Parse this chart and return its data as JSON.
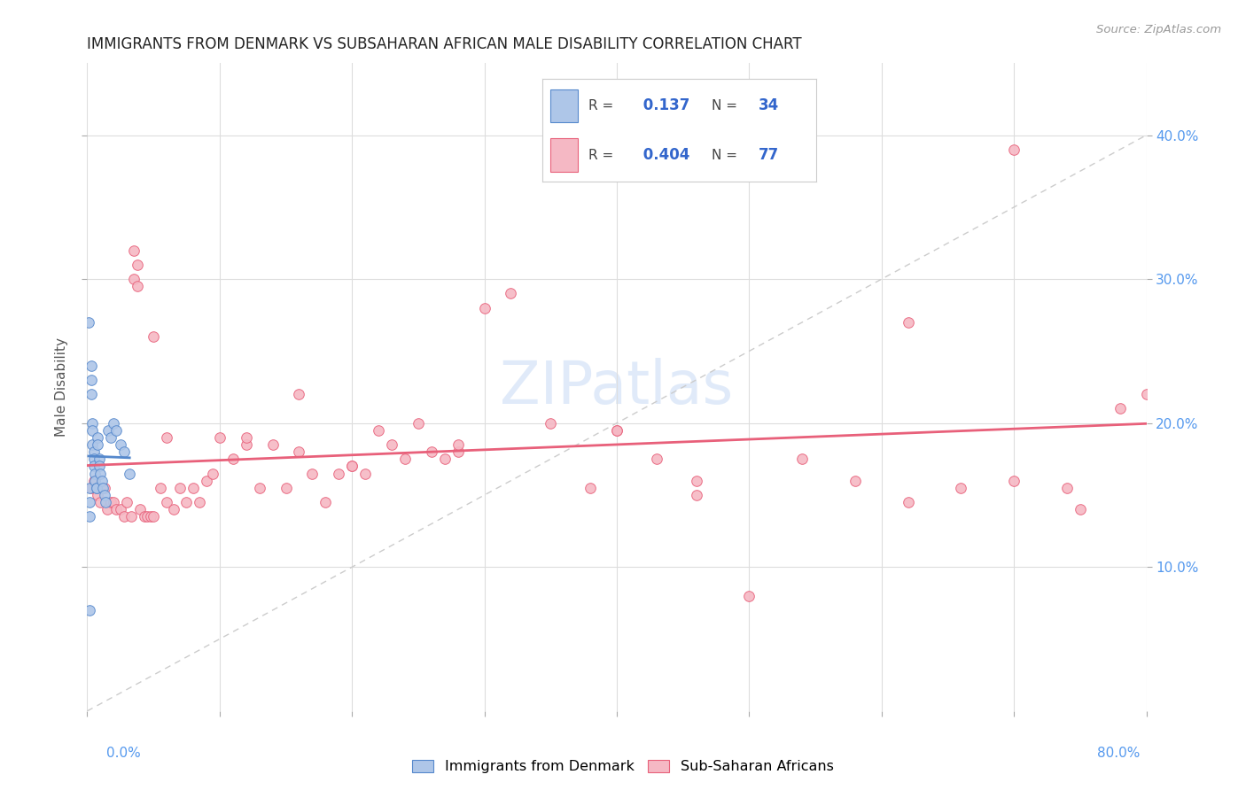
{
  "title": "IMMIGRANTS FROM DENMARK VS SUBSAHARAN AFRICAN MALE DISABILITY CORRELATION CHART",
  "source": "Source: ZipAtlas.com",
  "ylabel": "Male Disability",
  "legend_label1": "Immigrants from Denmark",
  "legend_label2": "Sub-Saharan Africans",
  "r1": 0.137,
  "n1": 34,
  "r2": 0.404,
  "n2": 77,
  "color_denmark": "#aec6e8",
  "color_subsaharan": "#f5b8c4",
  "color_denmark_line": "#5588cc",
  "color_subsaharan_line": "#e8607a",
  "color_diagonal": "#cccccc",
  "xlim_min": 0.0,
  "xlim_max": 0.8,
  "ylim_min": 0.0,
  "ylim_max": 0.45,
  "yticks": [
    0.1,
    0.2,
    0.3,
    0.4
  ],
  "ytick_labels": [
    "10.0%",
    "20.0%",
    "30.0%",
    "40.0%"
  ],
  "denmark_x": [
    0.001,
    0.002,
    0.002,
    0.002,
    0.003,
    0.003,
    0.003,
    0.004,
    0.004,
    0.004,
    0.005,
    0.005,
    0.005,
    0.006,
    0.006,
    0.007,
    0.007,
    0.008,
    0.008,
    0.009,
    0.009,
    0.01,
    0.011,
    0.012,
    0.013,
    0.014,
    0.016,
    0.018,
    0.02,
    0.022,
    0.025,
    0.028,
    0.032,
    0.002
  ],
  "denmark_y": [
    0.27,
    0.155,
    0.145,
    0.135,
    0.24,
    0.23,
    0.22,
    0.2,
    0.195,
    0.185,
    0.18,
    0.175,
    0.17,
    0.165,
    0.16,
    0.155,
    0.155,
    0.19,
    0.185,
    0.175,
    0.17,
    0.165,
    0.16,
    0.155,
    0.15,
    0.145,
    0.195,
    0.19,
    0.2,
    0.195,
    0.185,
    0.18,
    0.165,
    0.07
  ],
  "subsaharan_x": [
    0.003,
    0.005,
    0.008,
    0.01,
    0.013,
    0.015,
    0.018,
    0.02,
    0.022,
    0.025,
    0.028,
    0.03,
    0.033,
    0.035,
    0.038,
    0.04,
    0.043,
    0.045,
    0.048,
    0.05,
    0.055,
    0.06,
    0.065,
    0.07,
    0.075,
    0.08,
    0.085,
    0.09,
    0.095,
    0.1,
    0.11,
    0.12,
    0.13,
    0.14,
    0.15,
    0.16,
    0.17,
    0.18,
    0.19,
    0.2,
    0.21,
    0.22,
    0.23,
    0.24,
    0.25,
    0.26,
    0.27,
    0.28,
    0.3,
    0.32,
    0.35,
    0.38,
    0.4,
    0.43,
    0.46,
    0.5,
    0.54,
    0.58,
    0.62,
    0.66,
    0.7,
    0.74,
    0.78,
    0.035,
    0.038,
    0.05,
    0.06,
    0.12,
    0.16,
    0.2,
    0.28,
    0.4,
    0.46,
    0.62,
    0.7,
    0.75,
    0.8
  ],
  "subsaharan_y": [
    0.155,
    0.16,
    0.15,
    0.145,
    0.155,
    0.14,
    0.145,
    0.145,
    0.14,
    0.14,
    0.135,
    0.145,
    0.135,
    0.32,
    0.31,
    0.14,
    0.135,
    0.135,
    0.135,
    0.135,
    0.155,
    0.145,
    0.14,
    0.155,
    0.145,
    0.155,
    0.145,
    0.16,
    0.165,
    0.19,
    0.175,
    0.185,
    0.155,
    0.185,
    0.155,
    0.18,
    0.165,
    0.145,
    0.165,
    0.17,
    0.165,
    0.195,
    0.185,
    0.175,
    0.2,
    0.18,
    0.175,
    0.18,
    0.28,
    0.29,
    0.2,
    0.155,
    0.195,
    0.175,
    0.15,
    0.08,
    0.175,
    0.16,
    0.27,
    0.155,
    0.39,
    0.155,
    0.21,
    0.3,
    0.295,
    0.26,
    0.19,
    0.19,
    0.22,
    0.17,
    0.185,
    0.195,
    0.16,
    0.145,
    0.16,
    0.14,
    0.22
  ]
}
